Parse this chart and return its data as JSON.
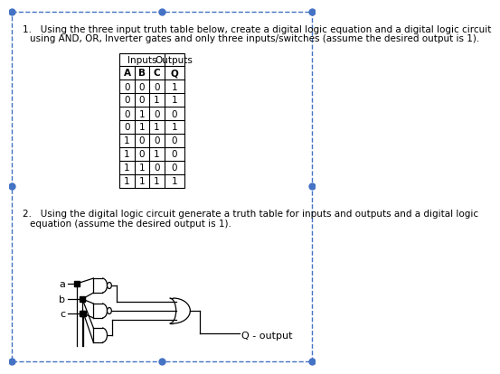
{
  "title1": "1.   Using the three input truth table below, create a digital logic equation and a digital logic circuit",
  "title1b": "using AND, OR, Inverter gates and only three inputs/switches (assume the desired output is 1).",
  "title2": "2.   Using the digital logic circuit generate a truth table for inputs and outputs and a digital logic",
  "title2b": "equation (assume the desired output is 1).",
  "inputs_header": "Inputs",
  "outputs_header": "Outputs",
  "col_headers": [
    "A",
    "B",
    "C",
    "Q"
  ],
  "rows": [
    [
      0,
      0,
      0,
      1
    ],
    [
      0,
      0,
      1,
      1
    ],
    [
      0,
      1,
      0,
      0
    ],
    [
      0,
      1,
      1,
      1
    ],
    [
      1,
      0,
      0,
      0
    ],
    [
      1,
      0,
      1,
      0
    ],
    [
      1,
      1,
      0,
      0
    ],
    [
      1,
      1,
      1,
      1
    ]
  ],
  "q_output_label": "Q - output",
  "bg_color": "#ffffff",
  "text_color": "#000000",
  "border_color": "#4472C4",
  "font_size": 7.5
}
